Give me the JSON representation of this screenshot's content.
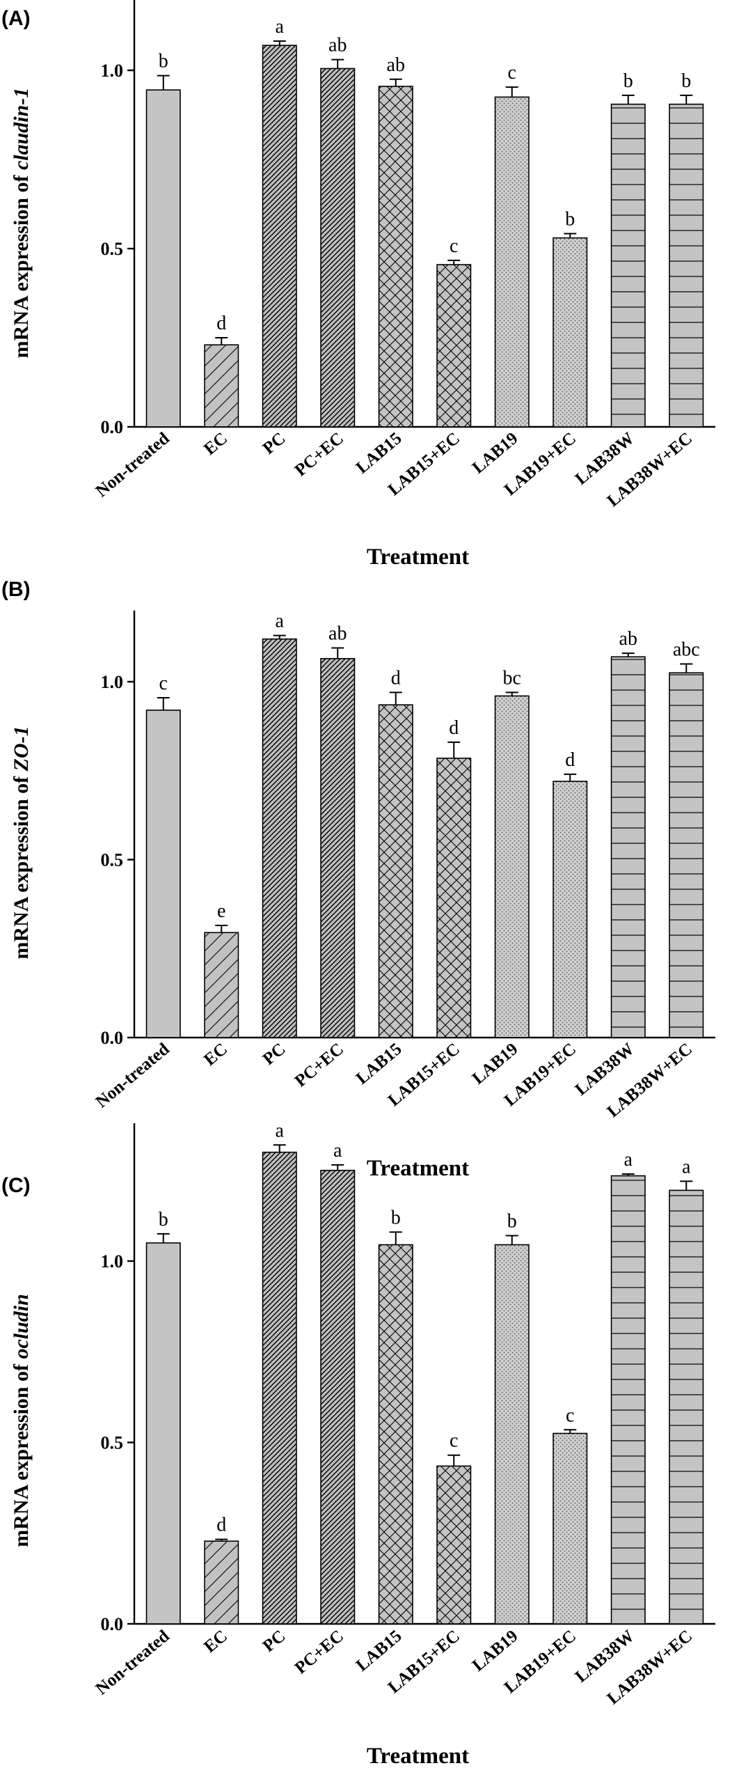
{
  "chart_data": [
    {
      "type": "bar",
      "panel": "(A)",
      "ylabel_prefix": "mRNA expression of ",
      "ylabel_gene": "claudin-1",
      "xlabel": "Treatment",
      "ylim": [
        0,
        1.2
      ],
      "yticks": [
        "0.0",
        "0.5",
        "1.0"
      ],
      "categories": [
        "Non-treated",
        "EC",
        "PC",
        "PC+EC",
        "LAB15",
        "LAB15+EC",
        "LAB19",
        "LAB19+EC",
        "LAB38W",
        "LAB38W+EC"
      ],
      "values": [
        0.945,
        0.23,
        1.07,
        1.005,
        0.955,
        0.455,
        0.925,
        0.53,
        0.905,
        0.905
      ],
      "errors": [
        0.04,
        0.02,
        0.012,
        0.025,
        0.02,
        0.012,
        0.028,
        0.012,
        0.025,
        0.025
      ],
      "significance": [
        "b",
        "d",
        "a",
        "ab",
        "ab",
        "c",
        "c",
        "b",
        "b",
        "b"
      ]
    },
    {
      "type": "bar",
      "panel": "(B)",
      "ylabel_prefix": "mRNA expression of ",
      "ylabel_gene": "ZO-1",
      "xlabel": "Treatment",
      "ylim": [
        0,
        1.2
      ],
      "yticks": [
        "0.0",
        "0.5",
        "1.0"
      ],
      "categories": [
        "Non-treated",
        "EC",
        "PC",
        "PC+EC",
        "LAB15",
        "LAB15+EC",
        "LAB19",
        "LAB19+EC",
        "LAB38W",
        "LAB38W+EC"
      ],
      "values": [
        0.92,
        0.295,
        1.12,
        1.065,
        0.935,
        0.785,
        0.96,
        0.72,
        1.07,
        1.025
      ],
      "errors": [
        0.035,
        0.02,
        0.01,
        0.03,
        0.035,
        0.045,
        0.01,
        0.02,
        0.01,
        0.025
      ],
      "significance": [
        "c",
        "e",
        "a",
        "ab",
        "d",
        "d",
        "bc",
        "d",
        "ab",
        "abc"
      ]
    },
    {
      "type": "bar",
      "panel": "(C)",
      "ylabel_prefix": "mRNA expression of ",
      "ylabel_gene": "ocludin",
      "xlabel": "Treatment",
      "ylim": [
        0,
        1.38
      ],
      "yticks": [
        "0.0",
        "0.5",
        "1.0"
      ],
      "categories": [
        "Non-treated",
        "EC",
        "PC",
        "PC+EC",
        "LAB15",
        "LAB15+EC",
        "LAB19",
        "LAB19+EC",
        "LAB38W",
        "LAB38W+EC"
      ],
      "values": [
        1.05,
        0.228,
        1.3,
        1.25,
        1.045,
        0.435,
        1.045,
        0.525,
        1.235,
        1.195
      ],
      "errors": [
        0.025,
        0.005,
        0.02,
        0.015,
        0.035,
        0.03,
        0.025,
        0.01,
        0.005,
        0.025
      ],
      "significance": [
        "b",
        "d",
        "a",
        "a",
        "b",
        "c",
        "b",
        "c",
        "a",
        "a"
      ]
    }
  ]
}
